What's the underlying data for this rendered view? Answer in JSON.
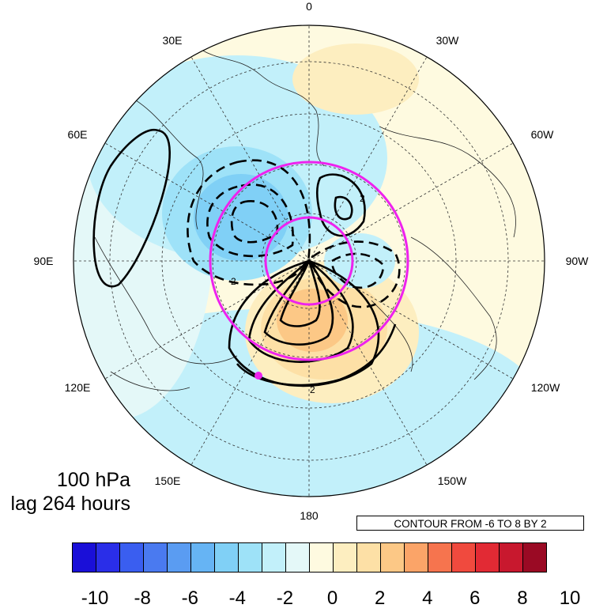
{
  "panel": {
    "level": "100 hPa",
    "lag": "lag 264 hours"
  },
  "contour_info": "CONTOUR FROM -6 TO 8 BY 2",
  "longitude_labels": {
    "top": "0",
    "e30": "30E",
    "w30": "30W",
    "e60": "60E",
    "w60": "60W",
    "e90": "90E",
    "w90": "90W",
    "e120": "120E",
    "w120": "120W",
    "e150": "150E",
    "w150": "150W",
    "bottom": "180"
  },
  "contour_labels": [
    "2",
    "2",
    "2"
  ],
  "colorbar": {
    "colors": [
      "#1a0fd8",
      "#2a2ee8",
      "#3a5ef0",
      "#4a7af0",
      "#5a9cf2",
      "#66b4f4",
      "#80d0f6",
      "#9ee2f8",
      "#c2f0fa",
      "#e4f8f8",
      "#fefae0",
      "#fdeec0",
      "#fde0a6",
      "#fcc886",
      "#fba468",
      "#f6744e",
      "#f04a3e",
      "#e22a34",
      "#c8182e",
      "#9a0a24"
    ],
    "labels": [
      "-10",
      "-8",
      "-6",
      "-4",
      "-2",
      "0",
      "2",
      "4",
      "6",
      "8",
      "10"
    ]
  },
  "legend_items": {
    "marker_color": "#ee22ee",
    "circle_color": "#ee22ee"
  }
}
